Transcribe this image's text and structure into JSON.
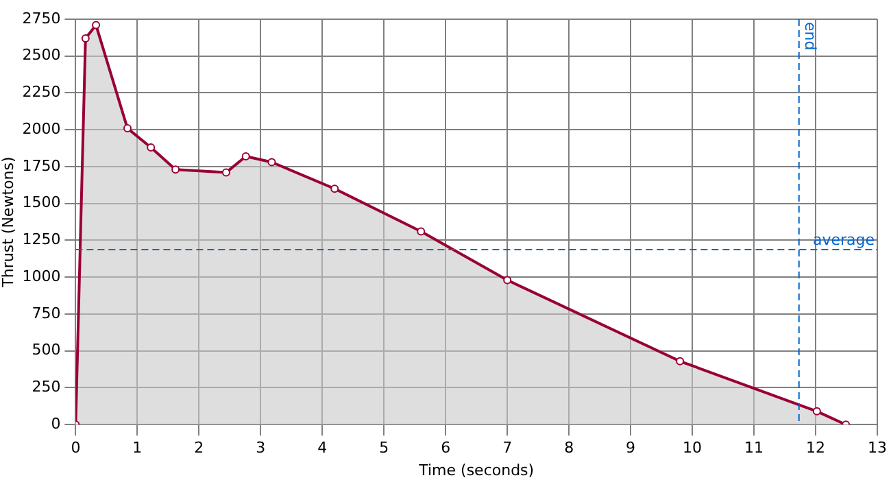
{
  "chart_data": {
    "type": "area",
    "xlabel": "Time (seconds)",
    "ylabel": "Thrust (Newtons)",
    "x": [
      0,
      0.16,
      0.33,
      0.84,
      1.22,
      1.62,
      2.44,
      2.76,
      3.18,
      4.2,
      5.6,
      7.0,
      9.8,
      12.02,
      12.49
    ],
    "series": [
      {
        "color": "#990033",
        "values": [
          0,
          2620,
          2710,
          2010,
          1880,
          1730,
          1710,
          1820,
          1780,
          1600,
          1310,
          980,
          430,
          90,
          0
        ]
      }
    ],
    "xlim": [
      0,
      13
    ],
    "xticks": [
      0,
      1,
      2,
      3,
      4,
      5,
      6,
      7,
      8,
      9,
      10,
      11,
      12,
      13
    ],
    "ylim": [
      0,
      2750
    ],
    "yticks": [
      0,
      250,
      500,
      750,
      1000,
      1250,
      1500,
      1750,
      2000,
      2250,
      2500,
      2750
    ],
    "ref_lines": [
      {
        "axis": "y",
        "value": 1187,
        "label": "average",
        "color": "#0066cc",
        "line_style": "dashed"
      },
      {
        "axis": "x",
        "value": 11.73,
        "label": "end",
        "color": "#0066cc",
        "line_style": "dashed"
      }
    ],
    "grid": true,
    "legend": false,
    "marker": "circle",
    "line_style": "solid"
  }
}
